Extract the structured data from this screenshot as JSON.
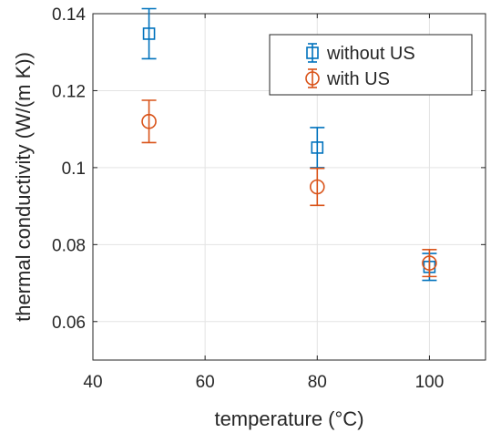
{
  "chart_data": {
    "type": "scatter",
    "title": "",
    "xlabel": "temperature (°C)",
    "ylabel": "thermal conductivity (W/(m K))",
    "xlim": [
      40,
      110
    ],
    "ylim": [
      0.05,
      0.14
    ],
    "xticks": [
      40,
      60,
      80,
      100
    ],
    "xtick_labels": [
      "40",
      "60",
      "80",
      "100"
    ],
    "yticks": [
      0.06,
      0.08,
      0.1,
      0.12,
      0.14
    ],
    "ytick_labels": [
      "0.06",
      "0.08",
      "0.1",
      "0.12",
      "0.14"
    ],
    "grid": true,
    "legend_position": "top-right",
    "series": [
      {
        "name": "without US",
        "color": "#0072BD",
        "marker": "square",
        "x": [
          50,
          80,
          100
        ],
        "y": [
          0.1348,
          0.1052,
          0.0742
        ],
        "error": [
          0.0065,
          0.0052,
          0.0035
        ]
      },
      {
        "name": "with US",
        "color": "#D95319",
        "marker": "circle",
        "x": [
          50,
          80,
          100
        ],
        "y": [
          0.112,
          0.095,
          0.0752
        ],
        "error": [
          0.0055,
          0.0048,
          0.0035
        ]
      }
    ]
  }
}
